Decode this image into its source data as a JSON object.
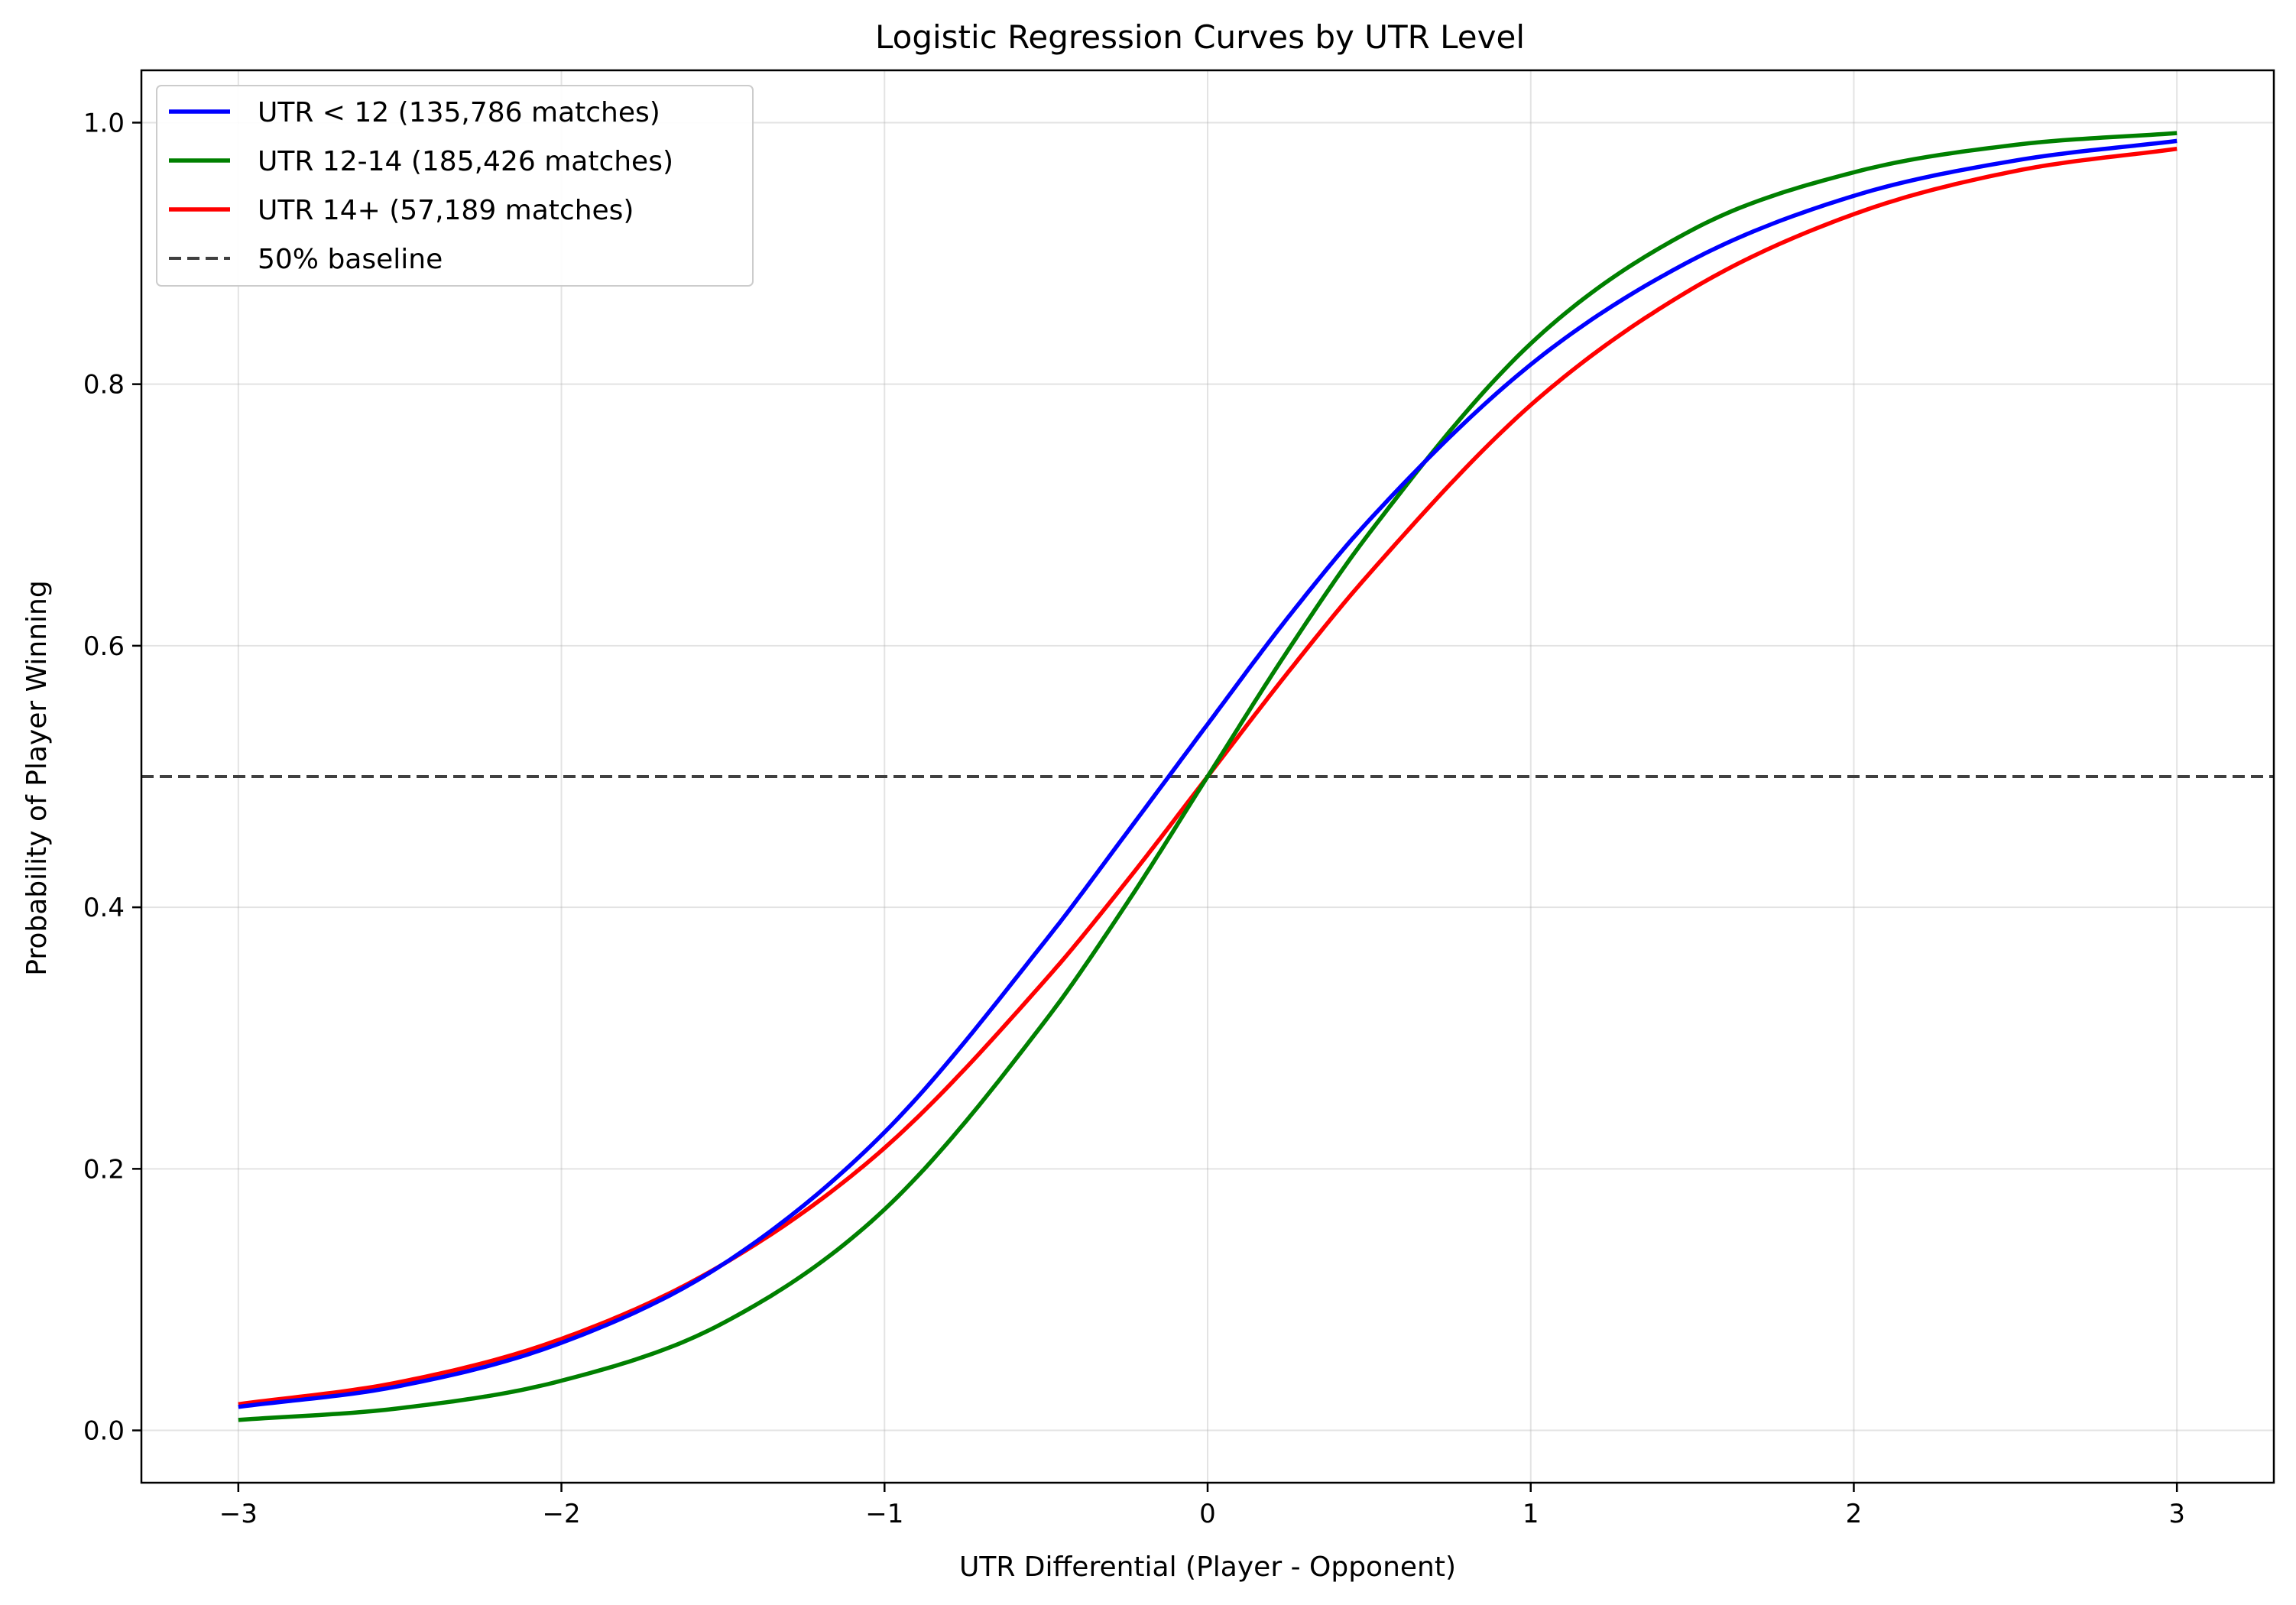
{
  "chart_data": {
    "type": "line",
    "title": "Logistic Regression Curves by UTR Level",
    "xlabel": "UTR Differential (Player - Opponent)",
    "ylabel": "Probability of Player Winning",
    "xlim": [
      -3.3,
      3.3
    ],
    "ylim": [
      -0.04,
      1.04
    ],
    "xticks": [
      -3,
      -2,
      -1,
      0,
      1,
      2,
      3
    ],
    "xtick_labels": [
      "−3",
      "−2",
      "−1",
      "0",
      "1",
      "2",
      "3"
    ],
    "yticks": [
      0.0,
      0.2,
      0.4,
      0.6,
      0.8,
      1.0
    ],
    "ytick_labels": [
      "0.0",
      "0.2",
      "0.4",
      "0.6",
      "0.8",
      "1.0"
    ],
    "grid": true,
    "legend_position": "top-left",
    "series": [
      {
        "name": "UTR < 12 (135,786 matches)",
        "color": "#0000ff",
        "style": "solid",
        "x": [
          -3,
          -2.5,
          -2,
          -1.5,
          -1,
          -0.5,
          -0.25,
          0,
          0.25,
          0.5,
          1,
          1.5,
          2,
          2.5,
          3
        ],
        "y": [
          0.018,
          0.034,
          0.067,
          0.127,
          0.228,
          0.375,
          0.457,
          0.54,
          0.622,
          0.696,
          0.815,
          0.895,
          0.944,
          0.971,
          0.986
        ]
      },
      {
        "name": "UTR 12-14 (185,426 matches)",
        "color": "#008000",
        "style": "solid",
        "x": [
          -3,
          -2.5,
          -2,
          -1.5,
          -1,
          -0.5,
          -0.25,
          0,
          0.25,
          0.5,
          1,
          1.5,
          2,
          2.5,
          3
        ],
        "y": [
          0.008,
          0.017,
          0.038,
          0.082,
          0.169,
          0.314,
          0.403,
          0.5,
          0.597,
          0.686,
          0.831,
          0.918,
          0.962,
          0.983,
          0.992
        ]
      },
      {
        "name": "UTR 14+ (57,189 matches)",
        "color": "#ff0000",
        "style": "solid",
        "x": [
          -3,
          -2.5,
          -2,
          -1.5,
          -1,
          -0.5,
          -0.25,
          0,
          0.25,
          0.5,
          1,
          1.5,
          2,
          2.5,
          3
        ],
        "y": [
          0.02,
          0.037,
          0.07,
          0.127,
          0.216,
          0.345,
          0.42,
          0.5,
          0.58,
          0.655,
          0.784,
          0.873,
          0.93,
          0.963,
          0.98
        ]
      },
      {
        "name": "50% baseline",
        "color": "#404040",
        "style": "dashed",
        "x": [
          -3.3,
          3.3
        ],
        "y": [
          0.5,
          0.5
        ]
      }
    ]
  }
}
